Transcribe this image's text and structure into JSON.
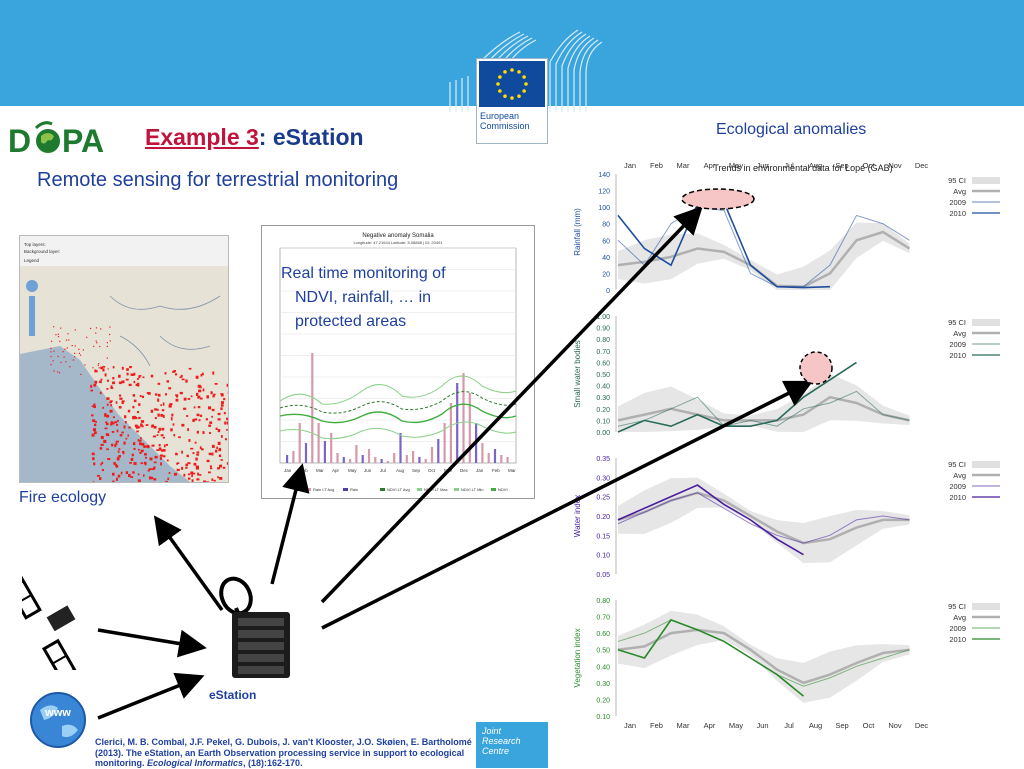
{
  "header": {
    "commission_line1": "European",
    "commission_line2": "Commission",
    "dopa_logo_text": "D  PA"
  },
  "slide": {
    "title_prefix": "Example 3",
    "title_colon": ":",
    "title_main": " eStation",
    "subtitle": "Remote sensing for terrestrial monitoring",
    "ecological_label": "Ecological anomalies",
    "fire_label": "Fire ecology",
    "ndvi_caption_1": "Real time monitoring of",
    "ndvi_caption_2": "NDVI, rainfall, … in",
    "ndvi_caption_3": "protected areas",
    "estation_label": "eStation"
  },
  "fire_map": {
    "legend_line1": "Top layers:",
    "legend_line2": "Background layer:",
    "legend_line3": "Legend"
  },
  "ndvi_chart": {
    "title": "Negative anomaly Somalia",
    "subtitle": "Longitude: 47.21644 Latitude: 5.08888 | ID: 20491",
    "months": [
      "Jan",
      "Feb",
      "Mar",
      "Apr",
      "May",
      "Jun",
      "Jul",
      "Aug",
      "Sep",
      "Oct",
      "Nov",
      "Dec",
      "Jan",
      "Feb",
      "Mar"
    ],
    "legend": [
      "Rain LT Avg",
      "Rain",
      "NDVI LT Avg",
      "NDVI LT Max",
      "NDVI LT Min",
      "NDVI"
    ]
  },
  "eco_charts": {
    "title": "Trends in environmental data for Lopé (GAB)",
    "months": [
      "Jan",
      "Feb",
      "Mar",
      "Apr",
      "May",
      "Jun",
      "Jul",
      "Aug",
      "Sep",
      "Oct",
      "Nov",
      "Dec"
    ],
    "legend": [
      "95 CI",
      "Avg",
      "2009",
      "2010"
    ],
    "panels": [
      {
        "ylabel": "Rainfall (mm)",
        "ticks": [
          "140",
          "120",
          "100",
          "80",
          "60",
          "40",
          "20",
          "0"
        ],
        "color": "#1f4e9e"
      },
      {
        "ylabel": "Small water bodies",
        "ticks": [
          "1.00",
          "0.90",
          "0.80",
          "0.70",
          "0.60",
          "0.50",
          "0.40",
          "0.30",
          "0.20",
          "0.10",
          "0.00"
        ],
        "color": "#2a6a5a"
      },
      {
        "ylabel": "Water index",
        "ticks": [
          "0.35",
          "0.30",
          "0.25",
          "0.20",
          "0.15",
          "0.10",
          "0.05"
        ],
        "color": "#4a1f9e"
      },
      {
        "ylabel": "Vegetation index",
        "ticks": [
          "0.80",
          "0.70",
          "0.60",
          "0.50",
          "0.40",
          "0.30",
          "0.20",
          "0.10"
        ],
        "color": "#2a8a2a"
      }
    ]
  },
  "citation": {
    "text": "Clerici, M. B. Combal, J.F. Pekel, G. Dubois, J. van't Klooster, J.O. Skøien, E. Bartholomé (2013). The eStation, an Earth Observation processing service in support to ecological monitoring. ",
    "journal": "Ecological Informatics",
    "tail": ", (18):162-170."
  },
  "jrc": {
    "line1": "Joint",
    "line2": "Research",
    "line3": "Centre"
  }
}
